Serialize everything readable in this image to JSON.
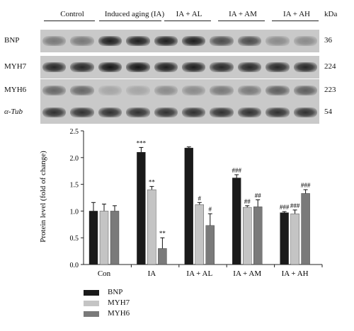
{
  "blot": {
    "groups": [
      "Control",
      "Induced aging (IA)",
      "IA + AL",
      "IA + AM",
      "IA + AH"
    ],
    "unit": "kDa",
    "rows": [
      {
        "label": "BNP",
        "mw": "36",
        "intensity": [
          0.45,
          0.45,
          0.95,
          0.95,
          0.95,
          0.95,
          0.7,
          0.7,
          0.35,
          0.35
        ]
      },
      {
        "label": "MYH7",
        "mw": "224",
        "intensity": [
          0.9,
          0.9,
          1.0,
          1.0,
          0.95,
          0.95,
          0.9,
          0.9,
          0.9,
          0.9
        ]
      },
      {
        "label": "MYH6",
        "mw": "223",
        "intensity": [
          0.55,
          0.55,
          0.2,
          0.2,
          0.35,
          0.35,
          0.45,
          0.45,
          0.6,
          0.6
        ]
      },
      {
        "label": "α-Tub",
        "mw": "54",
        "intensity": [
          0.85,
          0.85,
          0.85,
          0.85,
          0.85,
          0.85,
          0.85,
          0.85,
          0.85,
          0.85
        ]
      }
    ]
  },
  "chart_data": {
    "type": "bar",
    "ylabel": "Protein level (fold of change)",
    "ylim": [
      0,
      2.5
    ],
    "yticks": [
      "0.0",
      "0.5",
      "1.0",
      "1.5",
      "2.0",
      "2.5"
    ],
    "categories": [
      "Con",
      "IA",
      "IA + AL",
      "IA + AM",
      "IA + AH"
    ],
    "series": [
      {
        "name": "BNP",
        "color": "#1a1a1a",
        "values": [
          1.0,
          2.1,
          2.18,
          1.62,
          0.97
        ],
        "errors": [
          0.16,
          0.09,
          0.02,
          0.06,
          0.02
        ],
        "annotations": [
          "",
          "***",
          "",
          "###",
          "###"
        ]
      },
      {
        "name": "MYH7",
        "color": "#c4c4c4",
        "values": [
          1.0,
          1.4,
          1.12,
          1.07,
          0.95
        ],
        "errors": [
          0.13,
          0.06,
          0.04,
          0.03,
          0.07
        ],
        "annotations": [
          "",
          "**",
          "#",
          "##",
          "###"
        ]
      },
      {
        "name": "MYH6",
        "color": "#7a7a7a",
        "values": [
          1.0,
          0.3,
          0.73,
          1.08,
          1.33
        ],
        "errors": [
          0.1,
          0.2,
          0.22,
          0.13,
          0.07
        ],
        "annotations": [
          "",
          "**",
          "#",
          "##",
          "###"
        ]
      }
    ],
    "legend_position": "bottom-left"
  }
}
